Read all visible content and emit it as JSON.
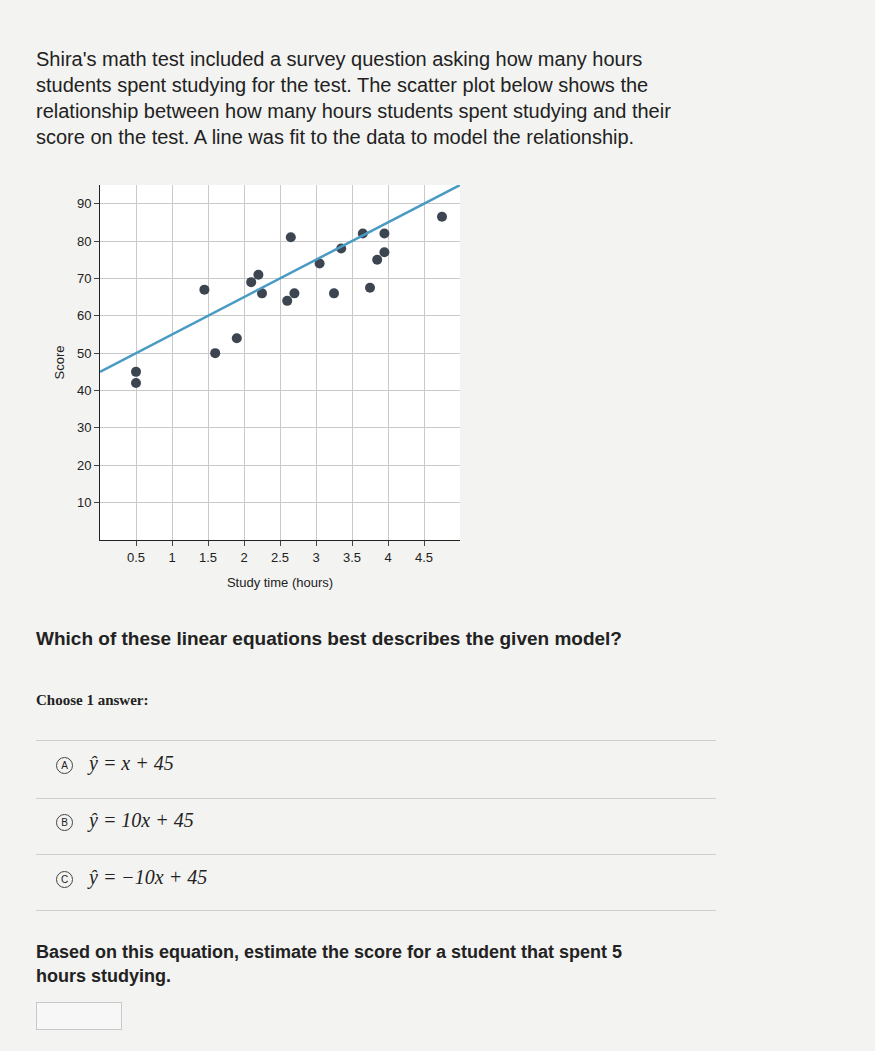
{
  "intro": "Shira's math test included a survey question asking how many hours students spent studying for the test. The scatter plot below shows the relationship between how many hours students spent studying and their score on the test. A line was fit to the data to model the relationship.",
  "chart_data": {
    "type": "scatter",
    "x_label": "Study time (hours)",
    "y_label": "Score",
    "xlim": [
      0,
      5
    ],
    "ylim": [
      0,
      95
    ],
    "xticks": [
      0.5,
      1,
      1.5,
      2,
      2.5,
      3,
      3.5,
      4,
      4.5
    ],
    "yticks": [
      10,
      20,
      30,
      40,
      50,
      60,
      70,
      80,
      90
    ],
    "grid": true,
    "series": [
      {
        "type": "scatter",
        "color": "#3d4550",
        "marker": "circle",
        "x": [
          0.5,
          0.5,
          1.6,
          1.9,
          1.45,
          2.1,
          2.2,
          2.25,
          2.6,
          2.7,
          2.65,
          3.05,
          3.25,
          3.35,
          3.65,
          3.75,
          3.85,
          3.95,
          3.95,
          4.75
        ],
        "values": [
          45,
          42,
          50,
          54,
          67,
          69,
          71,
          66,
          64,
          66,
          81,
          74,
          66,
          78,
          82,
          67.5,
          75,
          77,
          82,
          86.5
        ]
      },
      {
        "type": "line",
        "color": "#4a9bc4",
        "line_style": "solid",
        "x": [
          0,
          5
        ],
        "values": [
          45,
          95
        ]
      }
    ]
  },
  "question": "Which of these linear equations best describes the given model?",
  "choose": "Choose 1 answer:",
  "choices": [
    {
      "letter": "A",
      "text": "ŷ = x + 45"
    },
    {
      "letter": "B",
      "text": "ŷ = 10x + 45"
    },
    {
      "letter": "C",
      "text": "ŷ = −10x + 45"
    }
  ],
  "prompt": "Based on this equation, estimate the score for a student that spent 5 hours studying."
}
